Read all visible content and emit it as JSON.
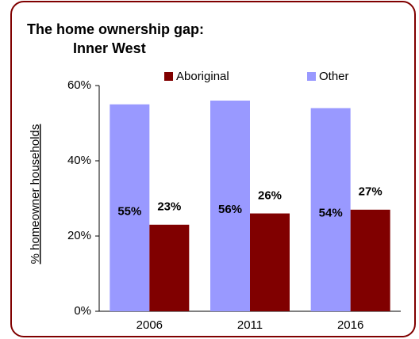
{
  "chart_data": {
    "type": "bar",
    "title": "The home ownership gap:",
    "subtitle": "Inner West",
    "ylabel": "% homeowner households",
    "categories": [
      "2006",
      "2011",
      "2016"
    ],
    "series": [
      {
        "name": "Other",
        "color": "#9999ff",
        "values": [
          55,
          56,
          54
        ],
        "value_labels": [
          "55%",
          "56%",
          "54%"
        ]
      },
      {
        "name": "Aboriginal",
        "color": "#800000",
        "values": [
          23,
          26,
          27
        ],
        "value_labels": [
          "23%",
          "26%",
          "27%"
        ]
      }
    ],
    "ylim": [
      0,
      60
    ],
    "yticks": [
      {
        "value": 0,
        "label": "0%"
      },
      {
        "value": 20,
        "label": "20%"
      },
      {
        "value": 40,
        "label": "40%"
      },
      {
        "value": 60,
        "label": "60%"
      }
    ],
    "legend": "top"
  }
}
